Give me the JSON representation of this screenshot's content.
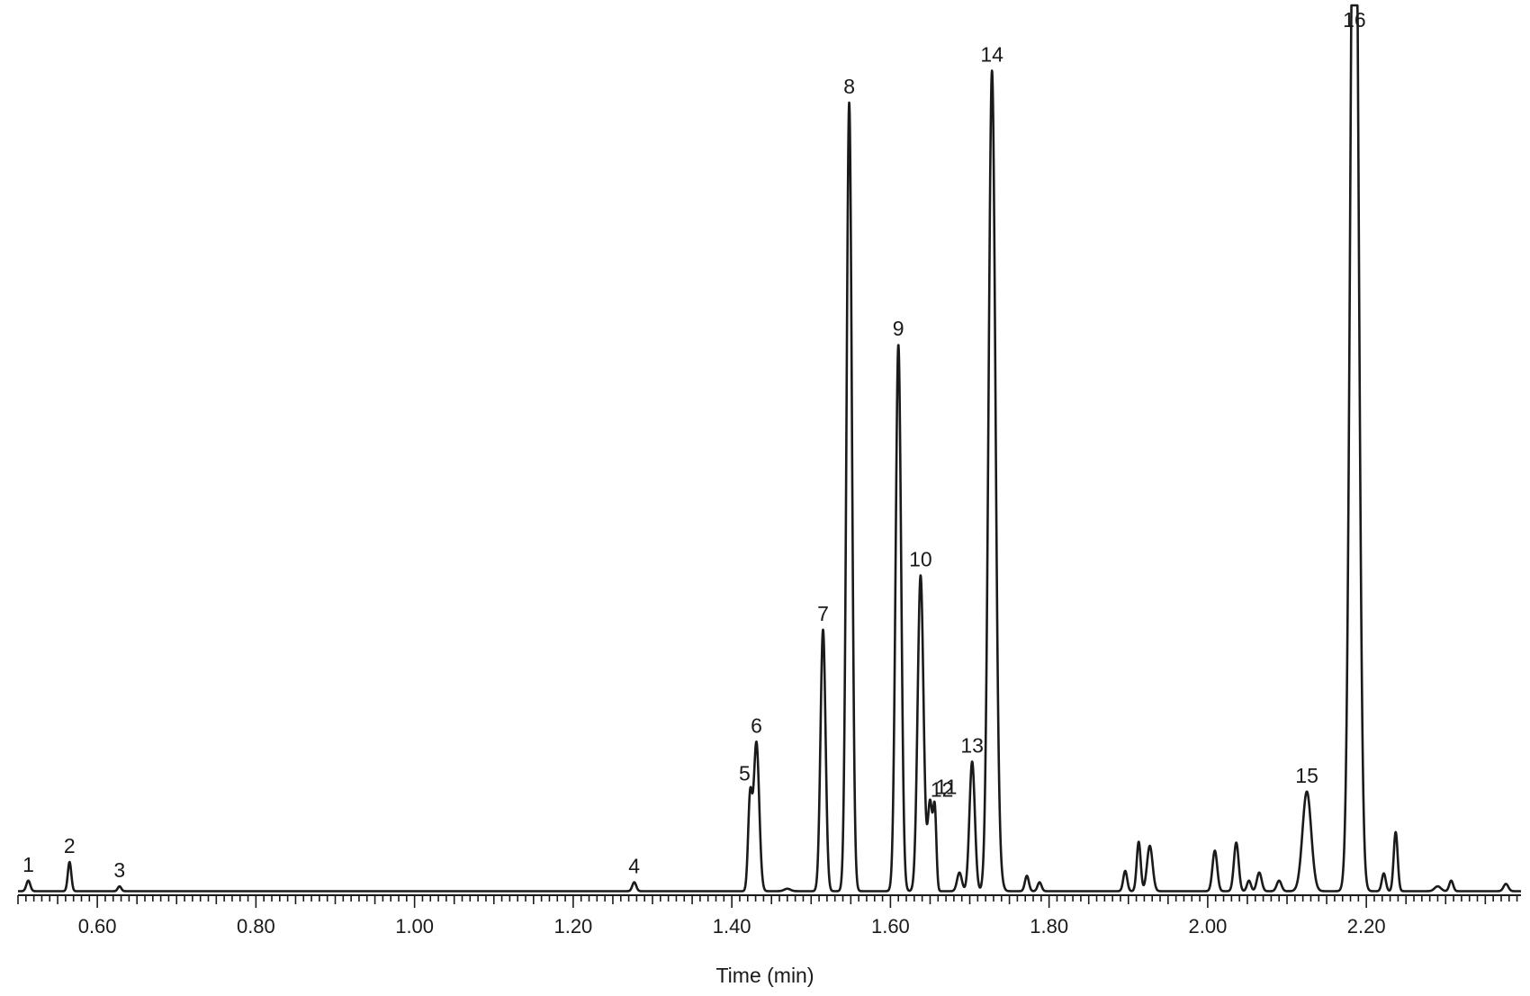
{
  "chart_data": {
    "type": "line",
    "title": "",
    "xlabel": "Time (min)",
    "ylabel": "",
    "xlim": [
      0.5,
      2.395
    ],
    "ylim": [
      0,
      100
    ],
    "y_axis_visible": false,
    "grid": false,
    "legend": "none",
    "x_ticks": [
      0.6,
      0.8,
      1.0,
      1.2,
      1.4,
      1.6,
      1.8,
      2.0,
      2.2
    ],
    "x_tick_labels": [
      "0.60",
      "0.80",
      "1.00",
      "1.20",
      "1.40",
      "1.60",
      "1.80",
      "2.00",
      "2.20"
    ],
    "minor_tick_step": 0.01,
    "baseline": 0.5,
    "line_color": "#1a1a1a",
    "peaks": [
      {
        "label": "1",
        "t": 0.513,
        "height": 1.3,
        "width": 0.0025
      },
      {
        "label": "2",
        "t": 0.565,
        "height": 3.6,
        "width": 0.0022
      },
      {
        "label": "3",
        "t": 0.628,
        "height": 0.6,
        "width": 0.0022
      },
      {
        "label": "4",
        "t": 1.277,
        "height": 1.1,
        "width": 0.0025
      },
      {
        "label": "5",
        "t": 1.423,
        "height": 11.2,
        "width": 0.0025
      },
      {
        "label": "6",
        "t": 1.431,
        "height": 18.4,
        "width": 0.0035
      },
      {
        "label": "7",
        "t": 1.515,
        "height": 32.3,
        "width": 0.0032
      },
      {
        "label": "8",
        "t": 1.548,
        "height": 97.4,
        "width": 0.0034
      },
      {
        "label": "9",
        "t": 1.61,
        "height": 67.5,
        "width": 0.0035
      },
      {
        "label": "10",
        "t": 1.638,
        "height": 39.0,
        "width": 0.0037
      },
      {
        "label": "11",
        "t": 1.65,
        "height": 11.0,
        "width": 0.003
      },
      {
        "label": "12",
        "t": 1.656,
        "height": 9.3,
        "width": 0.002
      },
      {
        "label": "13",
        "t": 1.703,
        "height": 16.0,
        "width": 0.0034
      },
      {
        "label": "14",
        "t": 1.728,
        "height": 101.0,
        "width": 0.0043
      },
      {
        "label": "15",
        "t": 2.125,
        "height": 12.3,
        "width": 0.0055
      },
      {
        "label": "16",
        "t": 2.185,
        "height": 150.0,
        "width": 0.005
      }
    ],
    "unlabeled_peaks": [
      {
        "t": 1.47,
        "height": 0.3,
        "width": 0.004
      },
      {
        "t": 1.687,
        "height": 2.3,
        "width": 0.003
      },
      {
        "t": 1.736,
        "height": 2.5,
        "width": 0.004
      },
      {
        "t": 1.772,
        "height": 1.9,
        "width": 0.0025
      },
      {
        "t": 1.788,
        "height": 1.1,
        "width": 0.0025
      },
      {
        "t": 1.896,
        "height": 2.5,
        "width": 0.0025
      },
      {
        "t": 1.913,
        "height": 6.1,
        "width": 0.0025
      },
      {
        "t": 1.927,
        "height": 5.6,
        "width": 0.0035
      },
      {
        "t": 2.009,
        "height": 5.0,
        "width": 0.003
      },
      {
        "t": 2.036,
        "height": 6.0,
        "width": 0.003
      },
      {
        "t": 2.052,
        "height": 1.3,
        "width": 0.0025
      },
      {
        "t": 2.065,
        "height": 2.3,
        "width": 0.003
      },
      {
        "t": 2.09,
        "height": 1.3,
        "width": 0.003
      },
      {
        "t": 2.222,
        "height": 2.2,
        "width": 0.0025
      },
      {
        "t": 2.237,
        "height": 7.3,
        "width": 0.0025
      },
      {
        "t": 2.29,
        "height": 0.6,
        "width": 0.004
      },
      {
        "t": 2.307,
        "height": 1.3,
        "width": 0.0025
      },
      {
        "t": 2.376,
        "height": 0.9,
        "width": 0.003
      }
    ]
  }
}
